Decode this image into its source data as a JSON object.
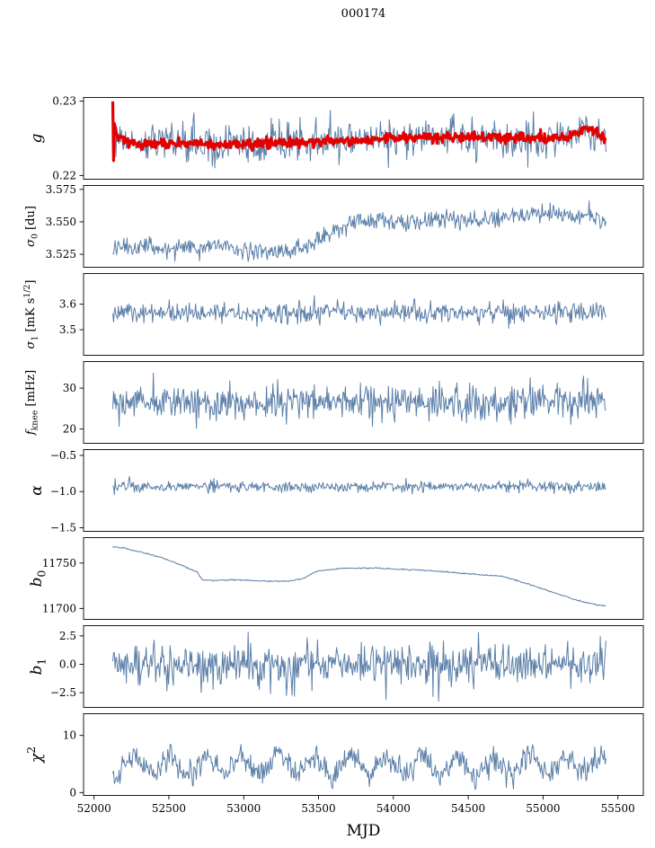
{
  "title": "000174",
  "chart_data": {
    "type": "line",
    "title": "000174",
    "xlabel": "MJD",
    "x_ticks": [
      52000,
      52500,
      53000,
      53500,
      54000,
      54500,
      55000,
      55500
    ],
    "x_tick_labels": [
      "52000",
      "52500",
      "53000",
      "53500",
      "54000",
      "54500",
      "55000",
      "55500"
    ],
    "x_range": [
      51930,
      55670
    ],
    "sample_x_range": [
      52125,
      55420
    ],
    "samples_per_series": 620,
    "line_color": "#5b7fa8",
    "overlay_color": "#e50000",
    "legend": "none",
    "grid": false,
    "panels": [
      {
        "id": "g",
        "label": [
          {
            "t": "g",
            "italic": true
          }
        ],
        "ylim": [
          0.2195,
          0.2305
        ],
        "yticks": [
          0.22,
          0.23
        ],
        "ytick_labels": [
          "0.22",
          "0.23"
        ],
        "series": [
          {
            "name": "g-raw",
            "color": "#5b7fa8",
            "width": 1,
            "sigma": 0.0013,
            "seed": 101,
            "trend": [
              [
                52125,
                0.2285
              ],
              [
                52140,
                0.2228
              ],
              [
                52155,
                0.225
              ],
              [
                52300,
                0.2243
              ],
              [
                52600,
                0.2244
              ],
              [
                52900,
                0.2242
              ],
              [
                53200,
                0.2245
              ],
              [
                53500,
                0.2247
              ],
              [
                53800,
                0.2249
              ],
              [
                54100,
                0.2251
              ],
              [
                54400,
                0.2252
              ],
              [
                54700,
                0.225
              ],
              [
                54950,
                0.225
              ],
              [
                55150,
                0.2253
              ],
              [
                55300,
                0.2262
              ],
              [
                55370,
                0.2257
              ],
              [
                55420,
                0.2246
              ]
            ]
          },
          {
            "name": "g-smoothed",
            "color": "#e50000",
            "width": 3.2,
            "sigma": 0.00035,
            "seed": 102,
            "trend": [
              [
                52125,
                0.2293
              ],
              [
                52129,
                0.2206
              ],
              [
                52136,
                0.2272
              ],
              [
                52150,
                0.2252
              ],
              [
                52300,
                0.2242
              ],
              [
                52600,
                0.2243
              ],
              [
                52900,
                0.2242
              ],
              [
                53200,
                0.2244
              ],
              [
                53500,
                0.2246
              ],
              [
                53800,
                0.2249
              ],
              [
                54100,
                0.2251
              ],
              [
                54400,
                0.2252
              ],
              [
                54700,
                0.2251
              ],
              [
                54950,
                0.225
              ],
              [
                55150,
                0.2252
              ],
              [
                55280,
                0.2261
              ],
              [
                55340,
                0.2262
              ],
              [
                55420,
                0.2249
              ]
            ]
          }
        ]
      },
      {
        "id": "sigma0",
        "label": [
          {
            "t": "σ",
            "italic": true
          },
          {
            "t": "0",
            "sub": true
          },
          {
            "t": " [du]"
          }
        ],
        "ylim": [
          3.515,
          3.578
        ],
        "yticks": [
          3.525,
          3.55,
          3.575
        ],
        "ytick_labels": [
          "3.525",
          "3.550",
          "3.575"
        ],
        "series": [
          {
            "name": "sigma0",
            "color": "#5b7fa8",
            "width": 1,
            "sigma": 0.0035,
            "seed": 201,
            "trend": [
              [
                52125,
                3.532
              ],
              [
                52300,
                3.53
              ],
              [
                52500,
                3.529
              ],
              [
                52700,
                3.531
              ],
              [
                52900,
                3.53
              ],
              [
                53050,
                3.528
              ],
              [
                53200,
                3.527
              ],
              [
                53350,
                3.529
              ],
              [
                53450,
                3.533
              ],
              [
                53550,
                3.539
              ],
              [
                53650,
                3.545
              ],
              [
                53750,
                3.549
              ],
              [
                53900,
                3.551
              ],
              [
                54050,
                3.55
              ],
              [
                54200,
                3.551
              ],
              [
                54400,
                3.552
              ],
              [
                54600,
                3.552
              ],
              [
                54800,
                3.555
              ],
              [
                54950,
                3.556
              ],
              [
                55080,
                3.557
              ],
              [
                55200,
                3.552
              ],
              [
                55300,
                3.556
              ],
              [
                55420,
                3.551
              ]
            ]
          }
        ]
      },
      {
        "id": "sigma1",
        "label": [
          {
            "t": "σ",
            "italic": true
          },
          {
            "t": "1",
            "sub": true
          },
          {
            "t": " [mK s"
          },
          {
            "t": "1/2",
            "sup": true
          },
          {
            "t": "]"
          }
        ],
        "ylim": [
          3.4,
          3.72
        ],
        "yticks": [
          3.5,
          3.6
        ],
        "ytick_labels": [
          "3.5",
          "3.6"
        ],
        "series": [
          {
            "name": "sigma1",
            "color": "#5b7fa8",
            "width": 1,
            "sigma": 0.02,
            "seed": 301,
            "trend": [
              [
                52125,
                3.565
              ],
              [
                52350,
                3.572
              ],
              [
                52600,
                3.566
              ],
              [
                52850,
                3.571
              ],
              [
                53100,
                3.567
              ],
              [
                53350,
                3.563
              ],
              [
                53600,
                3.569
              ],
              [
                53850,
                3.566
              ],
              [
                54100,
                3.571
              ],
              [
                54350,
                3.568
              ],
              [
                54600,
                3.57
              ],
              [
                54850,
                3.571
              ],
              [
                55100,
                3.574
              ],
              [
                55250,
                3.57
              ],
              [
                55420,
                3.566
              ]
            ]
          }
        ]
      },
      {
        "id": "fknee",
        "label": [
          {
            "t": "f",
            "italic": true
          },
          {
            "t": "knee",
            "sub": true
          },
          {
            "t": " [mHz]"
          }
        ],
        "ylim": [
          16.5,
          36.5
        ],
        "yticks": [
          20,
          30
        ],
        "ytick_labels": [
          "20",
          "30"
        ],
        "series": [
          {
            "name": "fknee",
            "color": "#5b7fa8",
            "width": 1,
            "sigma": 2.2,
            "seed": 401,
            "trend": [
              [
                52125,
                26.5
              ],
              [
                52500,
                27.0
              ],
              [
                52900,
                26.2
              ],
              [
                53300,
                26.8
              ],
              [
                53700,
                26.3
              ],
              [
                54100,
                26.6
              ],
              [
                54500,
                26.4
              ],
              [
                54900,
                26.7
              ],
              [
                55200,
                26.5
              ],
              [
                55420,
                27.2
              ]
            ]
          }
        ]
      },
      {
        "id": "alpha",
        "label": [
          {
            "t": "α",
            "italic": true
          }
        ],
        "ylim": [
          -1.55,
          -0.42
        ],
        "yticks": [
          -1.5,
          -1.0,
          -0.5
        ],
        "ytick_labels": [
          "−1.5",
          "−1.0",
          "−0.5"
        ],
        "series": [
          {
            "name": "alpha",
            "color": "#5b7fa8",
            "width": 1,
            "sigma": 0.04,
            "seed": 501,
            "trend": [
              [
                52125,
                -0.93
              ],
              [
                53000,
                -0.935
              ],
              [
                54000,
                -0.93
              ],
              [
                55420,
                -0.928
              ]
            ]
          }
        ]
      },
      {
        "id": "b0",
        "label": [
          {
            "t": "b",
            "italic": true
          },
          {
            "t": "0",
            "sub": true
          }
        ],
        "ylim": [
          11688,
          11778
        ],
        "yticks": [
          11700,
          11750
        ],
        "ytick_labels": [
          "11700",
          "11750"
        ],
        "series": [
          {
            "name": "b0",
            "color": "#5b7fa8",
            "width": 1,
            "sigma": 0.35,
            "seed": 601,
            "trend": [
              [
                52125,
                11768
              ],
              [
                52200,
                11766.5
              ],
              [
                52320,
                11762
              ],
              [
                52450,
                11756
              ],
              [
                52580,
                11748
              ],
              [
                52690,
                11740
              ],
              [
                52720,
                11732
              ],
              [
                52760,
                11731
              ],
              [
                52950,
                11731.5
              ],
              [
                53150,
                11730
              ],
              [
                53300,
                11730
              ],
              [
                53400,
                11733
              ],
              [
                53450,
                11738
              ],
              [
                53500,
                11741.5
              ],
              [
                53560,
                11742.5
              ],
              [
                53640,
                11744
              ],
              [
                53800,
                11744.5
              ],
              [
                53900,
                11744.5
              ],
              [
                54000,
                11743.5
              ],
              [
                54150,
                11742.5
              ],
              [
                54300,
                11741
              ],
              [
                54450,
                11739
              ],
              [
                54600,
                11737
              ],
              [
                54720,
                11735.5
              ],
              [
                54800,
                11732
              ],
              [
                54900,
                11727
              ],
              [
                55000,
                11721.5
              ],
              [
                55100,
                11716
              ],
              [
                55200,
                11710.5
              ],
              [
                55300,
                11706
              ],
              [
                55370,
                11704
              ],
              [
                55420,
                11702.5
              ]
            ]
          }
        ]
      },
      {
        "id": "b1",
        "label": [
          {
            "t": "b",
            "italic": true
          },
          {
            "t": "1",
            "sub": true
          }
        ],
        "ylim": [
          -3.8,
          3.4
        ],
        "yticks": [
          -2.5,
          0.0,
          2.5
        ],
        "ytick_labels": [
          "−2.5",
          "0.0",
          "2.5"
        ],
        "series": [
          {
            "name": "b1",
            "color": "#5b7fa8",
            "width": 1,
            "sigma": 0.9,
            "seed": 701,
            "trend": [
              [
                52125,
                0
              ],
              [
                55420,
                0
              ]
            ]
          }
        ]
      },
      {
        "id": "chi2",
        "label": [
          {
            "t": "χ",
            "italic": true
          },
          {
            "t": "2",
            "sup": true
          }
        ],
        "ylim": [
          -0.5,
          13.8
        ],
        "yticks": [
          0,
          10
        ],
        "ytick_labels": [
          "0",
          "10"
        ],
        "series": [
          {
            "name": "chi2",
            "color": "#5b7fa8",
            "width": 1,
            "sigma": 1.05,
            "seed": 801,
            "min": 0.25,
            "trend": [
              [
                52150,
                2.8
              ],
              [
                52270,
                6.5
              ],
              [
                52390,
                3.0
              ],
              [
                52510,
                6.8
              ],
              [
                52630,
                2.7
              ],
              [
                52750,
                6.4
              ],
              [
                52870,
                3.1
              ],
              [
                52990,
                6.6
              ],
              [
                53110,
                2.9
              ],
              [
                53230,
                6.7
              ],
              [
                53350,
                3.0
              ],
              [
                53470,
                6.3
              ],
              [
                53590,
                2.8
              ],
              [
                53710,
                6.6
              ],
              [
                53830,
                3.1
              ],
              [
                53950,
                6.5
              ],
              [
                54070,
                2.9
              ],
              [
                54190,
                6.4
              ],
              [
                54310,
                3.0
              ],
              [
                54430,
                6.7
              ],
              [
                54550,
                2.8
              ],
              [
                54670,
                6.5
              ],
              [
                54790,
                3.0
              ],
              [
                54910,
                6.6
              ],
              [
                55030,
                2.9
              ],
              [
                55150,
                6.4
              ],
              [
                55270,
                3.0
              ],
              [
                55390,
                6.2
              ]
            ]
          }
        ]
      }
    ]
  }
}
